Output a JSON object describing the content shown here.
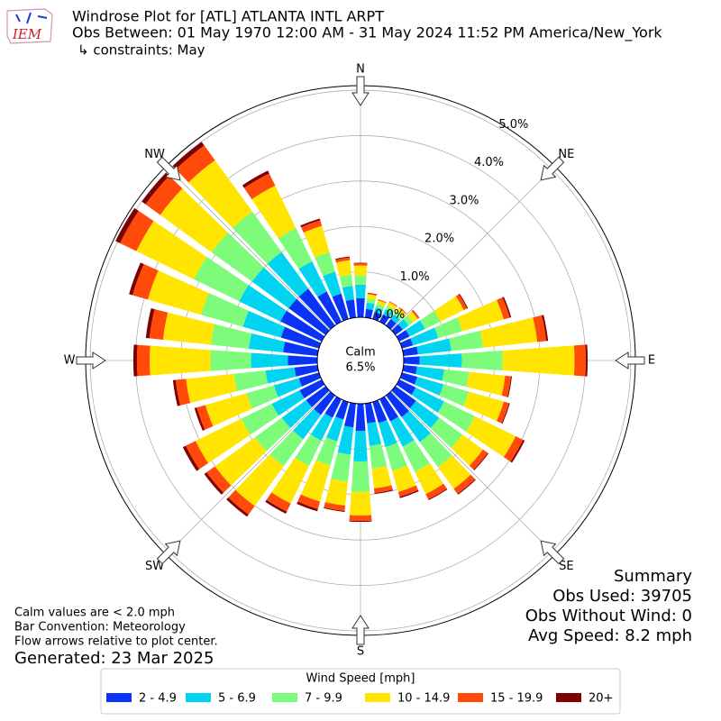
{
  "header": {
    "logo_text": "IEM",
    "title": "Windrose Plot for [ATL] ATLANTA INTL ARPT",
    "subtitle": "Obs Between: 01 May 1970 12:00 AM - 31 May 2024 11:52 PM America/New_York",
    "constraints": "↳ constraints: May"
  },
  "chart_data": {
    "type": "windrose",
    "x": [
      0,
      10,
      20,
      30,
      40,
      50,
      60,
      70,
      80,
      90,
      100,
      110,
      120,
      130,
      140,
      150,
      160,
      170,
      180,
      190,
      200,
      210,
      220,
      230,
      240,
      250,
      260,
      270,
      280,
      290,
      300,
      310,
      320,
      330,
      340,
      350
    ],
    "xlim": [
      0,
      360
    ],
    "xticks": [
      {
        "value": 0,
        "label": "N"
      },
      {
        "value": 45,
        "label": "NE"
      },
      {
        "value": 90,
        "label": "E"
      },
      {
        "value": 135,
        "label": "SE"
      },
      {
        "value": 180,
        "label": "S"
      },
      {
        "value": 225,
        "label": "SW"
      },
      {
        "value": 270,
        "label": "W"
      },
      {
        "value": 315,
        "label": "NW"
      }
    ],
    "ylim": [
      0,
      5.1
    ],
    "yticks": [
      {
        "value": 0,
        "label": "0.0%"
      },
      {
        "value": 1,
        "label": "1.0%"
      },
      {
        "value": 2,
        "label": "2.0%"
      },
      {
        "value": 3,
        "label": "3.0%"
      },
      {
        "value": 4,
        "label": "4.0%"
      },
      {
        "value": 5,
        "label": "5.0%"
      }
    ],
    "grid": true,
    "calm": {
      "label": "Calm",
      "value": 6.5,
      "value_label": "6.5%"
    },
    "legend_title": "Wind Speed [mph]",
    "series": [
      {
        "name": "2 - 4.9",
        "color": "#0a33f5",
        "values": [
          0.42,
          0.19,
          0.16,
          0.18,
          0.18,
          0.2,
          0.25,
          0.25,
          0.32,
          0.35,
          0.3,
          0.35,
          0.4,
          0.56,
          0.59,
          0.54,
          0.48,
          0.44,
          0.6,
          0.53,
          0.4,
          0.45,
          0.53,
          0.53,
          0.54,
          0.46,
          0.51,
          0.65,
          0.76,
          0.87,
          1.01,
          1.0,
          1.0,
          0.74,
          0.58,
          0.4
        ]
      },
      {
        "name": "5 - 6.9",
        "color": "#00d4f0",
        "values": [
          0.3,
          0.14,
          0.11,
          0.12,
          0.12,
          0.16,
          0.38,
          0.58,
          0.74,
          0.93,
          0.6,
          0.6,
          0.7,
          0.63,
          0.68,
          0.62,
          0.55,
          0.5,
          0.67,
          0.6,
          0.5,
          0.56,
          0.66,
          0.66,
          0.68,
          0.57,
          0.64,
          0.81,
          0.76,
          0.87,
          1.01,
          1.0,
          1.0,
          0.74,
          0.5,
          0.3
        ]
      },
      {
        "name": "7 - 9.9",
        "color": "#7dfb7a",
        "values": [
          0.2,
          0.09,
          0.08,
          0.09,
          0.09,
          0.12,
          0.37,
          0.55,
          0.7,
          0.9,
          0.55,
          0.58,
          0.75,
          0.63,
          0.68,
          0.62,
          0.55,
          0.5,
          0.67,
          0.6,
          0.55,
          0.62,
          0.73,
          0.73,
          0.75,
          0.63,
          0.7,
          0.89,
          0.84,
          0.96,
          1.11,
          1.1,
          1.1,
          0.81,
          0.45,
          0.25
        ]
      },
      {
        "name": "10 - 14.9",
        "color": "#ffe500",
        "values": [
          0.22,
          0.1,
          0.08,
          0.09,
          0.09,
          0.13,
          0.58,
          0.95,
          1.2,
          1.58,
          0.8,
          0.8,
          1.0,
          0.56,
          0.59,
          0.54,
          0.48,
          0.44,
          0.52,
          0.53,
          0.83,
          0.92,
          1.09,
          1.09,
          1.12,
          0.94,
          1.06,
          1.34,
          1.06,
          1.22,
          1.41,
          1.4,
          1.4,
          1.04,
          0.6,
          0.32
        ]
      },
      {
        "name": "15 - 19.9",
        "color": "#ff4a0a",
        "values": [
          0.05,
          0.02,
          0.02,
          0.02,
          0.02,
          0.03,
          0.08,
          0.14,
          0.2,
          0.25,
          0.13,
          0.12,
          0.18,
          0.13,
          0.14,
          0.13,
          0.11,
          0.1,
          0.12,
          0.12,
          0.17,
          0.2,
          0.23,
          0.23,
          0.24,
          0.2,
          0.23,
          0.28,
          0.3,
          0.35,
          0.4,
          0.4,
          0.4,
          0.3,
          0.13,
          0.06
        ]
      },
      {
        "name": "20+",
        "color": "#7f0000",
        "values": [
          0.01,
          0.01,
          0,
          0,
          0,
          0.01,
          0.02,
          0.03,
          0.04,
          0.04,
          0.02,
          0.02,
          0.04,
          0.02,
          0.02,
          0.02,
          0.03,
          0.02,
          0.02,
          0.02,
          0.05,
          0.05,
          0.06,
          0.06,
          0.07,
          0.05,
          0.06,
          0.08,
          0.08,
          0.08,
          0.11,
          0.1,
          0.1,
          0.07,
          0.04,
          0.02
        ]
      }
    ]
  },
  "summary": {
    "title": "Summary",
    "obs_used": "Obs Used: 39705",
    "obs_without_wind": "Obs Without Wind: 0",
    "avg_speed": "Avg Speed: 8.2 mph"
  },
  "notes": {
    "calm_note": "Calm values are < 2.0 mph",
    "convention": "Bar Convention: Meteorology",
    "arrows": "Flow arrows relative to plot center.",
    "generated": "Generated: 23 Mar 2025"
  }
}
